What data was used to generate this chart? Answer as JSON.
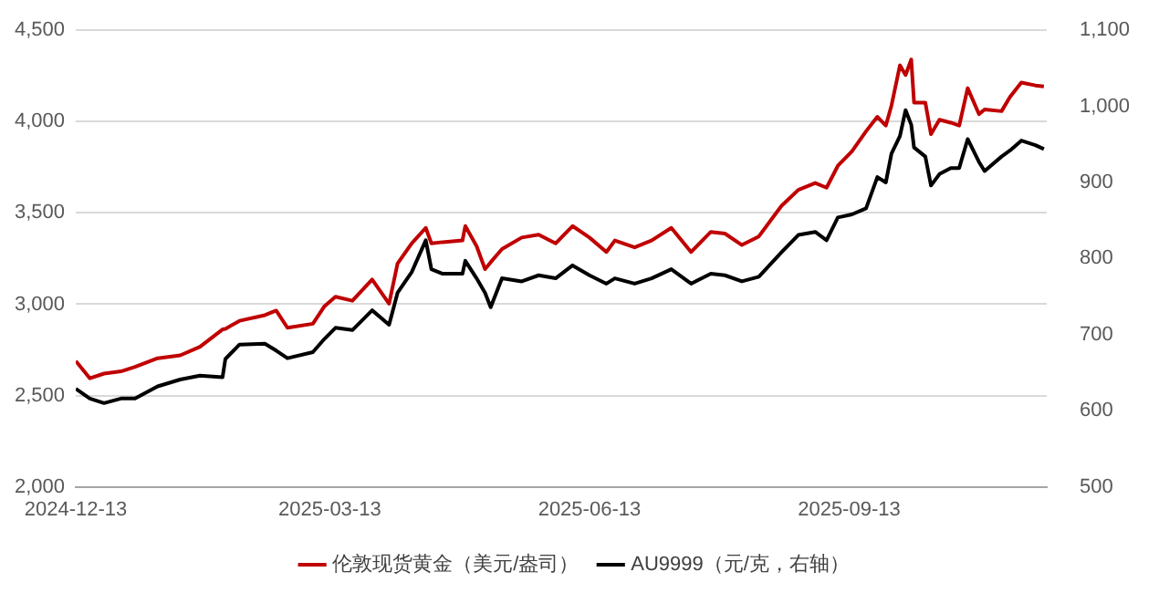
{
  "chart_data": {
    "type": "line",
    "x": [
      "2024-12-13",
      "2024-12-18",
      "2024-12-23",
      "2024-12-29",
      "2025-01-03",
      "2025-01-11",
      "2025-01-19",
      "2025-01-26",
      "2025-02-03",
      "2025-02-04",
      "2025-02-09",
      "2025-02-18",
      "2025-02-22",
      "2025-02-26",
      "2025-03-07",
      "2025-03-11",
      "2025-03-15",
      "2025-03-21",
      "2025-03-28",
      "2025-04-03",
      "2025-04-06",
      "2025-04-11",
      "2025-04-16",
      "2025-04-18",
      "2025-04-22",
      "2025-04-29",
      "2025-04-30",
      "2025-05-04",
      "2025-05-07",
      "2025-05-09",
      "2025-05-13",
      "2025-05-20",
      "2025-05-26",
      "2025-06-01",
      "2025-06-07",
      "2025-06-13",
      "2025-06-19",
      "2025-06-22",
      "2025-06-29",
      "2025-07-05",
      "2025-07-12",
      "2025-07-19",
      "2025-07-26",
      "2025-07-31",
      "2025-08-06",
      "2025-08-12",
      "2025-08-20",
      "2025-08-26",
      "2025-09-01",
      "2025-09-05",
      "2025-09-09",
      "2025-09-14",
      "2025-09-19",
      "2025-09-23",
      "2025-09-26",
      "2025-09-28",
      "2025-10-01",
      "2025-10-03",
      "2025-10-05",
      "2025-10-06",
      "2025-10-10",
      "2025-10-12",
      "2025-10-15",
      "2025-10-19",
      "2025-10-22",
      "2025-10-25",
      "2025-10-29",
      "2025-10-31",
      "2025-11-06",
      "2025-11-09",
      "2025-11-13",
      "2025-11-18",
      "2025-11-21"
    ],
    "series": [
      {
        "name": "伦敦现货黄金（美元/盎司）",
        "color": "#c00000",
        "values": [
          2689,
          2594,
          2620,
          2632,
          2657,
          2704,
          2720,
          2767,
          2862,
          2865,
          2909,
          2940,
          2965,
          2871,
          2893,
          2987,
          3041,
          3019,
          3135,
          3003,
          3223,
          3333,
          3418,
          3333,
          3340,
          3349,
          3428,
          3318,
          3192,
          3230,
          3302,
          3365,
          3381,
          3333,
          3428,
          3365,
          3286,
          3349,
          3311,
          3349,
          3418,
          3286,
          3396,
          3387,
          3324,
          3371,
          3538,
          3626,
          3664,
          3638,
          3758,
          3837,
          3947,
          4026,
          3978,
          4088,
          4308,
          4255,
          4340,
          4104,
          4104,
          3931,
          4010,
          3994,
          3978,
          4183,
          4041,
          4066,
          4057,
          4135,
          4214,
          4198,
          4192
        ]
      },
      {
        "name": "AU9999（元/克，右轴）",
        "color": "#000000",
        "axis": "y2",
        "values": [
          629,
          616,
          610,
          616,
          616,
          632,
          641,
          646,
          644,
          668,
          687,
          688,
          679,
          669,
          677,
          694,
          709,
          706,
          732,
          713,
          755,
          782,
          824,
          786,
          780,
          780,
          797,
          774,
          755,
          736,
          774,
          770,
          778,
          774,
          791,
          778,
          767,
          774,
          767,
          774,
          786,
          767,
          780,
          778,
          770,
          776,
          808,
          831,
          835,
          824,
          854,
          858,
          866,
          907,
          900,
          938,
          961,
          995,
          976,
          946,
          934,
          896,
          911,
          919,
          919,
          957,
          927,
          915,
          934,
          942,
          955,
          949,
          944
        ]
      }
    ],
    "xlim": [
      "2024-12-13",
      "2025-11-22"
    ],
    "xticks": [
      "2024-12-13",
      "2025-03-13",
      "2025-06-13",
      "2025-09-13"
    ],
    "ylim": [
      2000,
      4500
    ],
    "yticks": [
      {
        "value": 2000,
        "label": "2,000"
      },
      {
        "value": 2500,
        "label": "2,500"
      },
      {
        "value": 3000,
        "label": "3,000"
      },
      {
        "value": 3500,
        "label": "3,500"
      },
      {
        "value": 4000,
        "label": "4,000"
      },
      {
        "value": 4500,
        "label": "4,500"
      }
    ],
    "y2lim": [
      500,
      1100
    ],
    "y2ticks": [
      500,
      600,
      700,
      800,
      900,
      {
        "value": 1000,
        "label": "1,000"
      },
      {
        "value": 1100,
        "label": "1,100"
      }
    ],
    "grid": "y",
    "legend": "bottom",
    "marker": "none",
    "line_style": "solid"
  }
}
